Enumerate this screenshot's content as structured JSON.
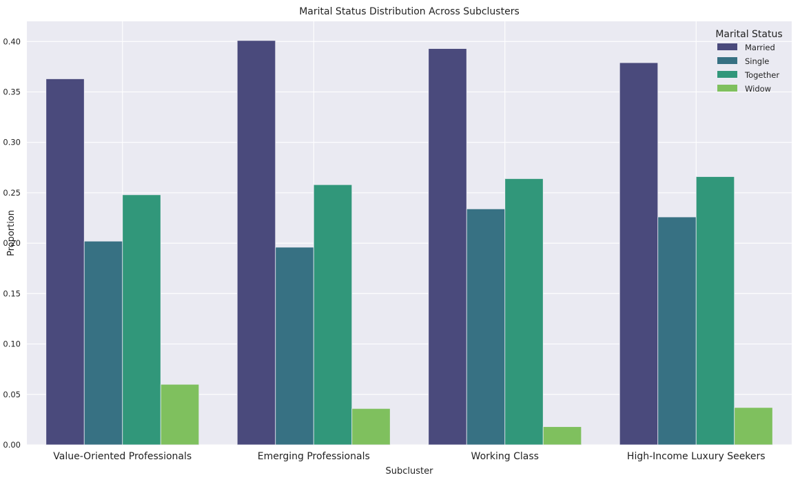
{
  "chart_data": {
    "type": "bar",
    "title": "Marital Status Distribution Across Subclusters",
    "xlabel": "Subcluster",
    "ylabel": "Proportion",
    "categories": [
      "Value-Oriented Professionals",
      "Emerging Professionals",
      "Working Class",
      "High-Income Luxury Seekers"
    ],
    "series": [
      {
        "name": "Married",
        "color": "#4a4a7c",
        "values": [
          0.363,
          0.401,
          0.393,
          0.379
        ]
      },
      {
        "name": "Single",
        "color": "#377183",
        "values": [
          0.202,
          0.196,
          0.234,
          0.226
        ]
      },
      {
        "name": "Together",
        "color": "#31977a",
        "values": [
          0.248,
          0.258,
          0.264,
          0.266
        ]
      },
      {
        "name": "Widow",
        "color": "#7fc05e",
        "values": [
          0.06,
          0.036,
          0.018,
          0.037
        ]
      }
    ],
    "ylim": [
      0,
      0.42
    ],
    "yticks": [
      "0.00",
      "0.05",
      "0.10",
      "0.15",
      "0.20",
      "0.25",
      "0.30",
      "0.35",
      "0.40"
    ],
    "grid": true,
    "legend": {
      "title": "Marital Status",
      "position": "top-right"
    }
  }
}
